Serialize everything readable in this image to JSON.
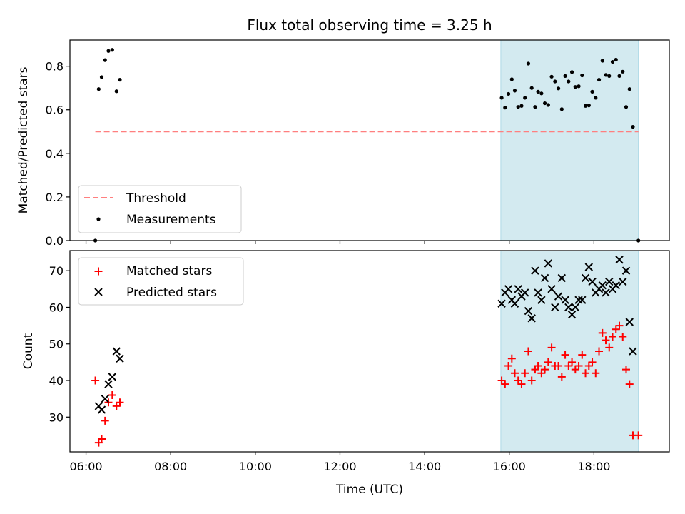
{
  "title": "Flux total observing time = 3.25 h",
  "shade": {
    "start": 15.8,
    "end": 19.05,
    "color": "#d3eaf0"
  },
  "colors": {
    "threshold": "#ff7f7f",
    "measurement": "#000000",
    "matched": "#ff0000",
    "predicted": "#000000"
  },
  "chart_data": [
    {
      "type": "scatter",
      "ylabel": "Matched/Predicted stars",
      "xlim": [
        5.62,
        19.78
      ],
      "ylim": [
        0,
        0.92
      ],
      "yticks": [
        0.0,
        0.2,
        0.4,
        0.6,
        0.8
      ],
      "ytick_labels": [
        "0.0",
        "0.2",
        "0.4",
        "0.6",
        "0.8"
      ],
      "legend": {
        "position": "lower-left",
        "entries": [
          "Threshold",
          "Measurements"
        ]
      },
      "threshold": {
        "name": "Threshold",
        "value": 0.5,
        "x": [
          6.22,
          19.05
        ]
      },
      "series": [
        {
          "name": "Measurements",
          "points": [
            [
              6.22,
              0.0
            ],
            [
              6.3,
              0.695
            ],
            [
              6.37,
              0.75
            ],
            [
              6.45,
              0.828
            ],
            [
              6.53,
              0.87
            ],
            [
              6.62,
              0.875
            ],
            [
              6.72,
              0.685
            ],
            [
              6.8,
              0.738
            ],
            [
              15.82,
              0.655
            ],
            [
              15.9,
              0.61
            ],
            [
              15.98,
              0.673
            ],
            [
              16.06,
              0.74
            ],
            [
              16.13,
              0.688
            ],
            [
              16.21,
              0.613
            ],
            [
              16.29,
              0.618
            ],
            [
              16.37,
              0.655
            ],
            [
              16.45,
              0.812
            ],
            [
              16.53,
              0.7
            ],
            [
              16.61,
              0.613
            ],
            [
              16.68,
              0.683
            ],
            [
              16.76,
              0.675
            ],
            [
              16.84,
              0.63
            ],
            [
              16.92,
              0.622
            ],
            [
              17.0,
              0.752
            ],
            [
              17.08,
              0.73
            ],
            [
              17.16,
              0.698
            ],
            [
              17.24,
              0.603
            ],
            [
              17.32,
              0.755
            ],
            [
              17.4,
              0.73
            ],
            [
              17.48,
              0.773
            ],
            [
              17.56,
              0.705
            ],
            [
              17.64,
              0.708
            ],
            [
              17.72,
              0.758
            ],
            [
              17.8,
              0.618
            ],
            [
              17.88,
              0.62
            ],
            [
              17.96,
              0.683
            ],
            [
              18.04,
              0.655
            ],
            [
              18.12,
              0.738
            ],
            [
              18.2,
              0.825
            ],
            [
              18.28,
              0.76
            ],
            [
              18.36,
              0.755
            ],
            [
              18.44,
              0.82
            ],
            [
              18.52,
              0.83
            ],
            [
              18.6,
              0.755
            ],
            [
              18.68,
              0.775
            ],
            [
              18.76,
              0.613
            ],
            [
              18.84,
              0.695
            ],
            [
              18.92,
              0.522
            ],
            [
              19.05,
              0.0
            ]
          ]
        }
      ]
    },
    {
      "type": "scatter",
      "ylabel": "Count",
      "xlabel": "Time (UTC)",
      "xlim": [
        5.62,
        19.78
      ],
      "ylim": [
        20.5,
        75.5
      ],
      "yticks": [
        30,
        40,
        50,
        60,
        70
      ],
      "ytick_labels": [
        "30",
        "40",
        "50",
        "60",
        "70"
      ],
      "xticks": [
        6,
        8,
        10,
        12,
        14,
        16,
        18
      ],
      "xtick_labels": [
        "06:00",
        "08:00",
        "10:00",
        "12:00",
        "14:00",
        "16:00",
        "18:00"
      ],
      "legend": {
        "position": "upper-left",
        "entries": [
          "Matched stars",
          "Predicted stars"
        ]
      },
      "series": [
        {
          "name": "Matched stars",
          "marker": "plus",
          "points": [
            [
              6.22,
              40
            ],
            [
              6.3,
              23
            ],
            [
              6.37,
              24
            ],
            [
              6.45,
              29
            ],
            [
              6.53,
              34
            ],
            [
              6.62,
              36
            ],
            [
              6.72,
              33
            ],
            [
              6.8,
              34
            ],
            [
              15.82,
              40
            ],
            [
              15.9,
              39
            ],
            [
              15.98,
              44
            ],
            [
              16.06,
              46
            ],
            [
              16.13,
              42
            ],
            [
              16.21,
              40
            ],
            [
              16.29,
              39
            ],
            [
              16.37,
              42
            ],
            [
              16.45,
              48
            ],
            [
              16.53,
              40
            ],
            [
              16.61,
              43
            ],
            [
              16.68,
              44
            ],
            [
              16.76,
              42
            ],
            [
              16.84,
              43
            ],
            [
              16.92,
              45
            ],
            [
              17.0,
              49
            ],
            [
              17.08,
              44
            ],
            [
              17.16,
              44
            ],
            [
              17.24,
              41
            ],
            [
              17.32,
              47
            ],
            [
              17.4,
              44
            ],
            [
              17.48,
              45
            ],
            [
              17.56,
              43
            ],
            [
              17.64,
              44
            ],
            [
              17.72,
              47
            ],
            [
              17.8,
              42
            ],
            [
              17.88,
              44
            ],
            [
              17.96,
              45
            ],
            [
              18.04,
              42
            ],
            [
              18.12,
              48
            ],
            [
              18.2,
              53
            ],
            [
              18.28,
              51
            ],
            [
              18.36,
              49
            ],
            [
              18.44,
              52
            ],
            [
              18.52,
              54
            ],
            [
              18.6,
              55
            ],
            [
              18.68,
              52
            ],
            [
              18.76,
              43
            ],
            [
              18.84,
              39
            ],
            [
              18.92,
              25
            ],
            [
              19.05,
              25
            ]
          ]
        },
        {
          "name": "Predicted stars",
          "marker": "x",
          "points": [
            [
              6.3,
              33
            ],
            [
              6.37,
              32
            ],
            [
              6.45,
              35
            ],
            [
              6.53,
              39
            ],
            [
              6.62,
              41
            ],
            [
              6.72,
              48
            ],
            [
              6.8,
              46
            ],
            [
              15.82,
              61
            ],
            [
              15.9,
              64
            ],
            [
              15.98,
              65
            ],
            [
              16.06,
              62
            ],
            [
              16.13,
              61
            ],
            [
              16.21,
              65
            ],
            [
              16.29,
              63
            ],
            [
              16.37,
              64
            ],
            [
              16.45,
              59
            ],
            [
              16.53,
              57
            ],
            [
              16.61,
              70
            ],
            [
              16.68,
              64
            ],
            [
              16.76,
              62
            ],
            [
              16.84,
              68
            ],
            [
              16.92,
              72
            ],
            [
              17.0,
              65
            ],
            [
              17.08,
              60
            ],
            [
              17.16,
              63
            ],
            [
              17.24,
              68
            ],
            [
              17.32,
              62
            ],
            [
              17.4,
              60
            ],
            [
              17.48,
              58
            ],
            [
              17.56,
              60
            ],
            [
              17.64,
              62
            ],
            [
              17.72,
              62
            ],
            [
              17.8,
              68
            ],
            [
              17.88,
              71
            ],
            [
              17.96,
              67
            ],
            [
              18.04,
              64
            ],
            [
              18.12,
              65
            ],
            [
              18.2,
              66
            ],
            [
              18.28,
              64
            ],
            [
              18.36,
              67
            ],
            [
              18.44,
              65
            ],
            [
              18.52,
              66
            ],
            [
              18.6,
              73
            ],
            [
              18.68,
              67
            ],
            [
              18.76,
              70
            ],
            [
              18.84,
              56
            ],
            [
              18.92,
              48
            ]
          ]
        }
      ]
    }
  ]
}
